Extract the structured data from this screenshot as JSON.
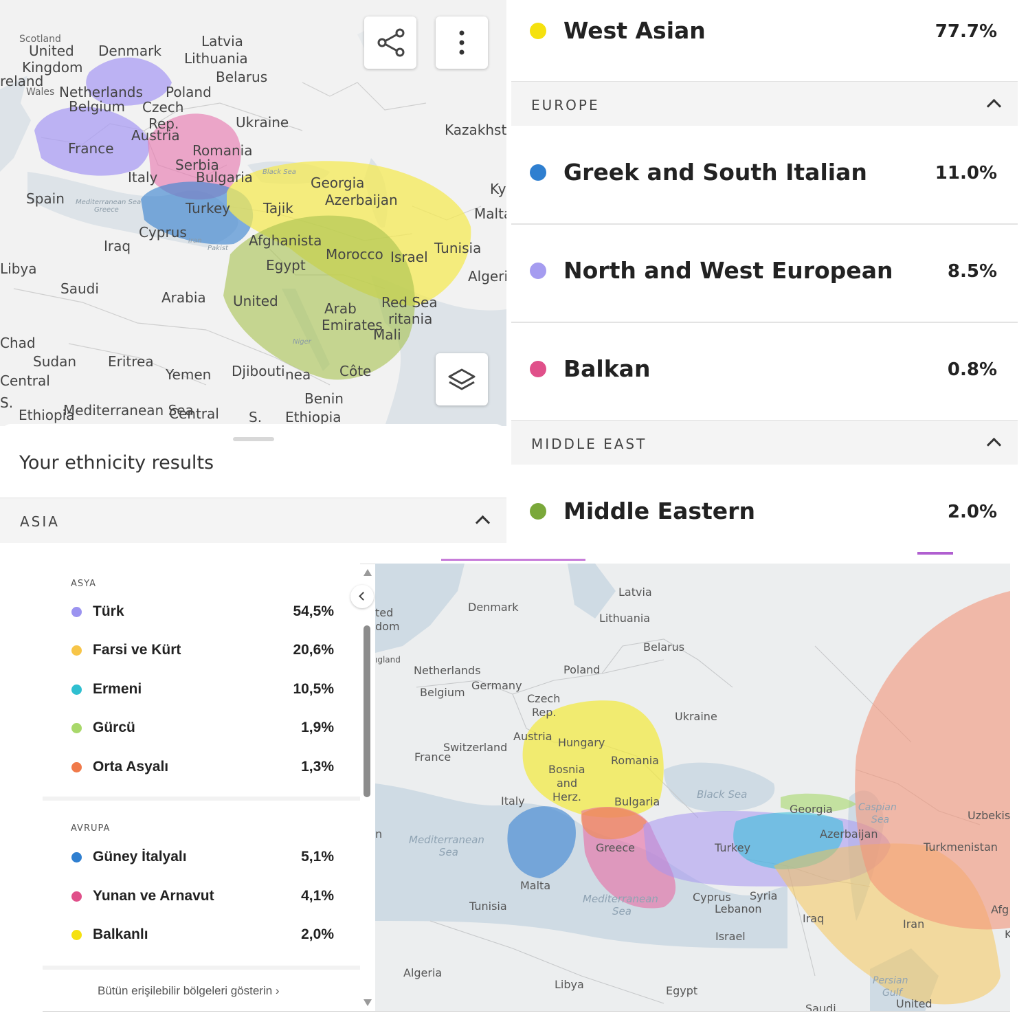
{
  "panel1": {
    "sheet_title": "Your ethnicity results",
    "section": "ASIA",
    "icons": {
      "share": "share-icon",
      "more": "more-vert-icon",
      "layers": "layers-icon"
    },
    "map_labels": [
      "Scotland",
      "United",
      "Kingdom",
      "reland",
      "Wales",
      "Denmark",
      "Latvia",
      "Lithuania",
      "Belarus",
      "Netherlands",
      "Belgium",
      "Poland",
      "Czech",
      "Rep.",
      "Austria",
      "Ukraine",
      "Kazakhst",
      "France",
      "Romania",
      "Serbia",
      "Italy",
      "Bulgaria",
      "Black Sea",
      "Georgia",
      "Azerbaijan",
      "Ky",
      "Spain",
      "Mediterranean Sea",
      "Greece",
      "Turkey",
      "Tajik",
      "Malta",
      "Cyprus",
      "Afghanista",
      "Tunisia",
      "Iraq",
      "Iran",
      "Pakist",
      "Morocco",
      "Israel",
      "Algeria",
      "Libya",
      "Egypt",
      "Saudi",
      "Arabia",
      "United",
      "Arab",
      "Emirates",
      "Red Sea",
      "ritania",
      "Mali",
      "Niger",
      "Chad",
      "Sudan",
      "Eritrea",
      "Yemen",
      "Djibouti",
      "nea",
      "Côte",
      "Benin",
      "Central",
      "S.",
      "Ethiopia",
      "Mediterranean Sea"
    ]
  },
  "panel2": {
    "rows": [
      {
        "name": "West Asian",
        "pct": "77.7%",
        "color": "#f5e10f"
      },
      {
        "name": "Greek and South Italian",
        "pct": "11.0%",
        "color": "#2f7fd0"
      },
      {
        "name": "North and West European",
        "pct": "8.5%",
        "color": "#a59cf0"
      },
      {
        "name": "Balkan",
        "pct": "0.8%",
        "color": "#e0508a"
      },
      {
        "name": "Middle Eastern",
        "pct": "2.0%",
        "color": "#7aa83a"
      }
    ],
    "sections": [
      "EUROPE",
      "MIDDLE EAST"
    ]
  },
  "panel3": {
    "asia_head": "ASYA",
    "asia": [
      {
        "name": "Türk",
        "pct": "54,5%",
        "color": "#9b93f0"
      },
      {
        "name": "Farsi ve Kürt",
        "pct": "20,6%",
        "color": "#f7c548"
      },
      {
        "name": "Ermeni",
        "pct": "10,5%",
        "color": "#2fbfd0"
      },
      {
        "name": "Gürcü",
        "pct": "1,9%",
        "color": "#a8d86a"
      },
      {
        "name": "Orta Asyalı",
        "pct": "1,3%",
        "color": "#f07a4a"
      }
    ],
    "europe_head": "AVRUPA",
    "europe": [
      {
        "name": "Güney İtalyalı",
        "pct": "5,1%",
        "color": "#2f7fd0"
      },
      {
        "name": "Yunan ve Arnavut",
        "pct": "4,1%",
        "color": "#e0508a"
      },
      {
        "name": "Balkanlı",
        "pct": "2,0%",
        "color": "#f5e10f"
      }
    ],
    "show_all": "Bütün erişilebilir bölgeleri gösterin ›",
    "map_labels": [
      "ted",
      "dom",
      "Denmark",
      "Latvia",
      "Lithuania",
      "Belarus",
      "ıgland",
      "Netherlands",
      "Belgium",
      "Germany",
      "Poland",
      "Czech",
      "Rep.",
      "Ukraine",
      "Austria",
      "Hungary",
      "Switzerland",
      "France",
      "Romania",
      "Bosnia",
      "and",
      "Herz.",
      "Italy",
      "Bulgaria",
      "Black Sea",
      "Georgia",
      "Caspian",
      "Sea",
      "Uzbekis",
      "Azerbaijan",
      "Turkmenistan",
      "n",
      "Mediterranean",
      "Sea",
      "Greece",
      "Turkey",
      "Malta",
      "Tunisia",
      "Mediterranean",
      "Sea",
      "Cyprus",
      "Syria",
      "Lebanon",
      "Iraq",
      "Iran",
      "Afg",
      "Israel",
      "Algeria",
      "Libya",
      "Egypt",
      "Persian",
      "Gulf",
      "Saudi",
      "United",
      "K"
    ]
  }
}
